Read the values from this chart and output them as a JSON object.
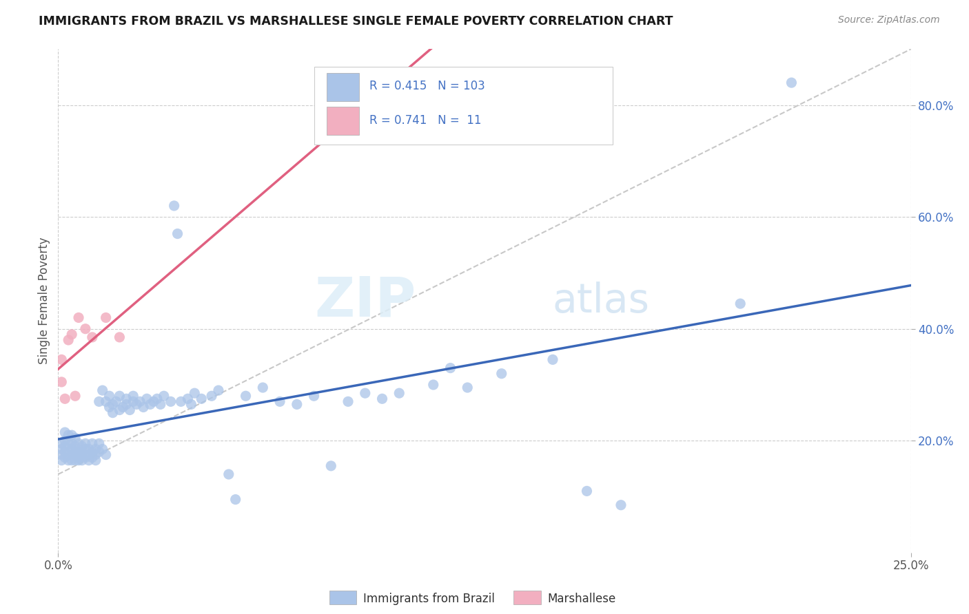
{
  "title": "IMMIGRANTS FROM BRAZIL VS MARSHALLESE SINGLE FEMALE POVERTY CORRELATION CHART",
  "source": "Source: ZipAtlas.com",
  "ylabel": "Single Female Poverty",
  "xlim": [
    0.0,
    0.25
  ],
  "ylim": [
    0.0,
    0.9
  ],
  "x_ticks": [
    0.0,
    0.25
  ],
  "x_tick_labels": [
    "0.0%",
    "25.0%"
  ],
  "y_ticks": [
    0.2,
    0.4,
    0.6,
    0.8
  ],
  "y_tick_labels": [
    "20.0%",
    "40.0%",
    "60.0%",
    "80.0%"
  ],
  "brazil_color": "#aac4e8",
  "marshallese_color": "#f2afc0",
  "brazil_line_color": "#3a67b8",
  "marshallese_line_color": "#e06080",
  "background_color": "#ffffff",
  "grid_color": "#cccccc",
  "label_color": "#4472c4",
  "R_brazil": 0.415,
  "N_brazil": 103,
  "R_marshallese": 0.741,
  "N_marshallese": 11,
  "brazil_scatter": [
    [
      0.001,
      0.175
    ],
    [
      0.001,
      0.195
    ],
    [
      0.001,
      0.165
    ],
    [
      0.001,
      0.185
    ],
    [
      0.002,
      0.18
    ],
    [
      0.002,
      0.2
    ],
    [
      0.002,
      0.215
    ],
    [
      0.002,
      0.17
    ],
    [
      0.002,
      0.19
    ],
    [
      0.003,
      0.175
    ],
    [
      0.003,
      0.195
    ],
    [
      0.003,
      0.21
    ],
    [
      0.003,
      0.165
    ],
    [
      0.004,
      0.18
    ],
    [
      0.004,
      0.195
    ],
    [
      0.004,
      0.165
    ],
    [
      0.004,
      0.185
    ],
    [
      0.004,
      0.21
    ],
    [
      0.005,
      0.175
    ],
    [
      0.005,
      0.19
    ],
    [
      0.005,
      0.165
    ],
    [
      0.005,
      0.205
    ],
    [
      0.005,
      0.18
    ],
    [
      0.006,
      0.17
    ],
    [
      0.006,
      0.195
    ],
    [
      0.006,
      0.18
    ],
    [
      0.006,
      0.165
    ],
    [
      0.007,
      0.18
    ],
    [
      0.007,
      0.19
    ],
    [
      0.007,
      0.175
    ],
    [
      0.007,
      0.165
    ],
    [
      0.008,
      0.185
    ],
    [
      0.008,
      0.17
    ],
    [
      0.008,
      0.195
    ],
    [
      0.009,
      0.175
    ],
    [
      0.009,
      0.185
    ],
    [
      0.009,
      0.165
    ],
    [
      0.01,
      0.18
    ],
    [
      0.01,
      0.195
    ],
    [
      0.01,
      0.17
    ],
    [
      0.011,
      0.185
    ],
    [
      0.011,
      0.175
    ],
    [
      0.011,
      0.165
    ],
    [
      0.012,
      0.18
    ],
    [
      0.012,
      0.195
    ],
    [
      0.012,
      0.27
    ],
    [
      0.013,
      0.185
    ],
    [
      0.013,
      0.29
    ],
    [
      0.014,
      0.175
    ],
    [
      0.014,
      0.27
    ],
    [
      0.015,
      0.26
    ],
    [
      0.015,
      0.28
    ],
    [
      0.016,
      0.265
    ],
    [
      0.016,
      0.25
    ],
    [
      0.017,
      0.27
    ],
    [
      0.018,
      0.255
    ],
    [
      0.018,
      0.28
    ],
    [
      0.019,
      0.26
    ],
    [
      0.02,
      0.265
    ],
    [
      0.02,
      0.275
    ],
    [
      0.021,
      0.255
    ],
    [
      0.022,
      0.27
    ],
    [
      0.022,
      0.28
    ],
    [
      0.023,
      0.265
    ],
    [
      0.024,
      0.27
    ],
    [
      0.025,
      0.26
    ],
    [
      0.026,
      0.275
    ],
    [
      0.027,
      0.265
    ],
    [
      0.028,
      0.27
    ],
    [
      0.029,
      0.275
    ],
    [
      0.03,
      0.265
    ],
    [
      0.031,
      0.28
    ],
    [
      0.033,
      0.27
    ],
    [
      0.034,
      0.62
    ],
    [
      0.035,
      0.57
    ],
    [
      0.036,
      0.27
    ],
    [
      0.038,
      0.275
    ],
    [
      0.039,
      0.265
    ],
    [
      0.04,
      0.285
    ],
    [
      0.042,
      0.275
    ],
    [
      0.045,
      0.28
    ],
    [
      0.047,
      0.29
    ],
    [
      0.05,
      0.14
    ],
    [
      0.052,
      0.095
    ],
    [
      0.055,
      0.28
    ],
    [
      0.06,
      0.295
    ],
    [
      0.065,
      0.27
    ],
    [
      0.07,
      0.265
    ],
    [
      0.075,
      0.28
    ],
    [
      0.08,
      0.155
    ],
    [
      0.085,
      0.27
    ],
    [
      0.09,
      0.285
    ],
    [
      0.095,
      0.275
    ],
    [
      0.1,
      0.285
    ],
    [
      0.11,
      0.3
    ],
    [
      0.115,
      0.33
    ],
    [
      0.12,
      0.295
    ],
    [
      0.13,
      0.32
    ],
    [
      0.145,
      0.345
    ],
    [
      0.155,
      0.11
    ],
    [
      0.165,
      0.085
    ],
    [
      0.2,
      0.445
    ],
    [
      0.215,
      0.84
    ]
  ],
  "marshallese_scatter": [
    [
      0.001,
      0.345
    ],
    [
      0.001,
      0.305
    ],
    [
      0.002,
      0.275
    ],
    [
      0.003,
      0.38
    ],
    [
      0.004,
      0.39
    ],
    [
      0.005,
      0.28
    ],
    [
      0.006,
      0.42
    ],
    [
      0.008,
      0.4
    ],
    [
      0.01,
      0.385
    ],
    [
      0.014,
      0.42
    ],
    [
      0.018,
      0.385
    ]
  ]
}
